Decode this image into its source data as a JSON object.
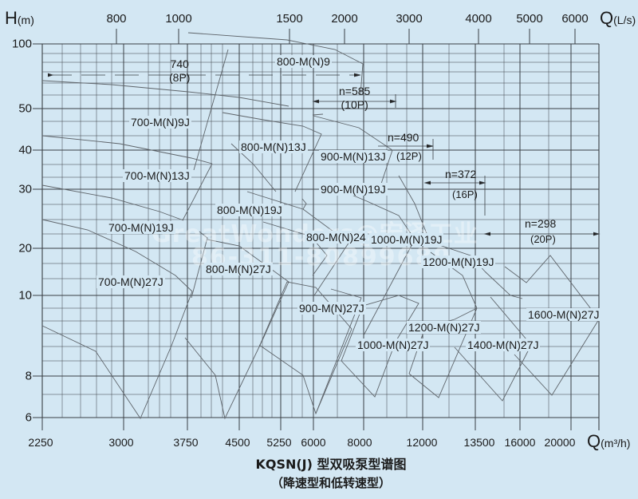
{
  "chart_data": {
    "type": "line",
    "title": "KQSN(J) 型双吸泵型谱图",
    "subtitle": "（降速型和低转速型）",
    "ylabel": "H",
    "ylabel_unit": "(m)",
    "xlabel": "Q",
    "xlabel_unit": "(m3/h)",
    "x2label": "Q",
    "x2label_unit": "(L/s)",
    "y_scale": "log",
    "x_scale": "log",
    "grid": true,
    "y_ticks": [
      6,
      8,
      10,
      20,
      30,
      40,
      50,
      100
    ],
    "x_ticks_bottom": [
      2250,
      3000,
      3750,
      4500,
      5250,
      6000,
      8000,
      12000,
      13500,
      16000,
      20000
    ],
    "x_ticks_top": [
      800,
      1000,
      1500,
      2000,
      3000,
      4000,
      5000,
      6000
    ],
    "speed_groups": [
      {
        "speed": "740",
        "poles": "(8P)"
      },
      {
        "speed": "n=585",
        "poles": "(10P)"
      },
      {
        "speed": "n=490",
        "poles": "(12P)"
      },
      {
        "speed": "n=372",
        "poles": "(16P)"
      },
      {
        "speed": "n=298",
        "poles": "(20P)"
      }
    ],
    "series": [
      {
        "name": "800-M(N)9"
      },
      {
        "name": "700-M(N)9J"
      },
      {
        "name": "800-M(N)13J"
      },
      {
        "name": "900-M(N)13J"
      },
      {
        "name": "700-M(N)13J"
      },
      {
        "name": "900-M(N)19J"
      },
      {
        "name": "800-M(N)19J"
      },
      {
        "name": "700-M(N)19J"
      },
      {
        "name": "800-M(N)24"
      },
      {
        "name": "1000-M(N)19J"
      },
      {
        "name": "1200-M(N)19J"
      },
      {
        "name": "700-M(N)27J"
      },
      {
        "name": "800-M(N)27J"
      },
      {
        "name": "900-M(N)27J"
      },
      {
        "name": "1000-M(N)27J"
      },
      {
        "name": "1200-M(N)27J"
      },
      {
        "name": "1400-M(N)27J"
      },
      {
        "name": "1600-M(N)27J"
      }
    ]
  },
  "labels": {
    "y_axis": "H",
    "y_unit": "(m)",
    "x_bottom": "Q",
    "x_bottom_unit": "(m³/h)",
    "x_top": "Q",
    "x_top_unit": "(L/s)",
    "title": "KQSN(J) 型双吸泵型谱图",
    "subtitle": "（降速型和低转速型）",
    "watermark_line1": "GreatWonders@宏泽工业",
    "watermark_line2": "86-311-80899689"
  },
  "colors": {
    "background": "#d3e7f3",
    "grid": "#3a3f44",
    "curve": "#5a6066",
    "text": "#1a1a1a"
  }
}
